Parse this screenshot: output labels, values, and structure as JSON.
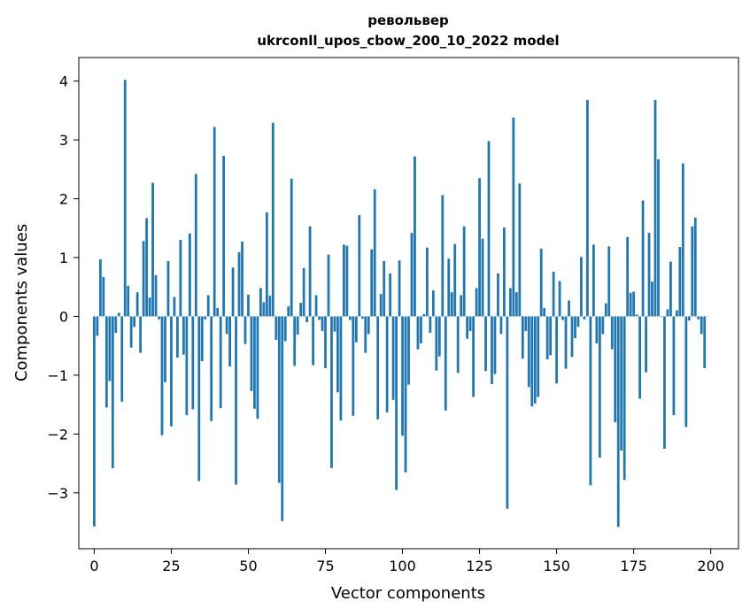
{
  "chart_data": {
    "type": "bar",
    "title_line1": "револьвер",
    "title_line2": "ukrconll_upos_cbow_200_10_2022 model",
    "xlabel": "Vector components",
    "ylabel": "Components values",
    "xlim": [
      -5,
      209
    ],
    "ylim": [
      -3.95,
      4.4
    ],
    "xticks": [
      0,
      25,
      50,
      75,
      100,
      125,
      150,
      175,
      200
    ],
    "yticks": [
      -3,
      -2,
      -1,
      0,
      1,
      2,
      3,
      4
    ],
    "ytick_labels": [
      "−3",
      "−2",
      "−1",
      "0",
      "1",
      "2",
      "3",
      "4"
    ],
    "bar_color": "#1f77b4",
    "grid": false,
    "values": [
      -3.57,
      -0.33,
      0.97,
      0.67,
      -1.55,
      -1.1,
      -2.58,
      -0.28,
      0.06,
      -1.45,
      4.02,
      0.52,
      -0.53,
      -0.18,
      0.41,
      -0.62,
      1.28,
      1.67,
      0.32,
      2.27,
      0.7,
      -0.05,
      -2.02,
      -1.12,
      0.94,
      -1.87,
      0.33,
      -0.7,
      1.3,
      -0.65,
      -1.68,
      1.41,
      -1.58,
      2.42,
      -2.8,
      -0.76,
      -0.05,
      0.36,
      -1.78,
      3.22,
      0.14,
      -1.56,
      2.73,
      -0.3,
      -0.85,
      0.83,
      -2.86,
      1.09,
      1.27,
      -0.47,
      0.37,
      -1.27,
      -1.57,
      -1.74,
      0.48,
      0.24,
      1.77,
      0.35,
      3.29,
      -0.4,
      -2.83,
      -3.48,
      -0.42,
      0.17,
      2.34,
      -0.84,
      -0.31,
      0.23,
      0.82,
      -0.1,
      1.53,
      -0.83,
      0.36,
      -0.06,
      -0.25,
      -0.88,
      1.05,
      -2.58,
      -0.26,
      -1.29,
      -1.77,
      1.22,
      1.2,
      -0.06,
      -1.69,
      -0.44,
      1.72,
      -0.04,
      -0.62,
      -0.3,
      1.14,
      2.16,
      -1.75,
      0.38,
      0.94,
      -1.63,
      0.73,
      -1.42,
      -2.95,
      0.95,
      -2.03,
      -2.65,
      -1.16,
      1.42,
      2.72,
      -0.56,
      -0.46,
      0.04,
      1.17,
      -0.28,
      0.44,
      -0.92,
      -0.68,
      2.06,
      -1.6,
      0.98,
      0.41,
      1.23,
      -0.96,
      0.36,
      1.53,
      -0.38,
      -0.25,
      -1.37,
      0.48,
      2.35,
      1.32,
      -0.93,
      2.98,
      -1.15,
      -0.98,
      0.73,
      -0.3,
      1.51,
      -3.27,
      0.48,
      3.38,
      0.41,
      2.26,
      -0.72,
      -0.25,
      -1.2,
      -1.53,
      -1.48,
      -1.37,
      1.15,
      0.14,
      -0.73,
      -0.66,
      0.76,
      -1.14,
      0.6,
      -0.06,
      -0.89,
      0.27,
      -0.69,
      -0.37,
      -0.18,
      1.01,
      -0.05,
      3.68,
      -2.87,
      1.22,
      -0.46,
      -2.4,
      -0.3,
      0.22,
      1.19,
      -0.56,
      -1.8,
      -3.58,
      -2.28,
      -2.78,
      1.35,
      0.4,
      0.42,
      0.03,
      -1.4,
      1.97,
      -0.95,
      1.42,
      0.59,
      3.68,
      2.67,
      -0.01,
      -2.25,
      0.12,
      0.93,
      -1.68,
      0.1,
      1.18,
      2.6,
      -1.88,
      -0.07,
      1.53,
      1.68,
      -0.05,
      -0.3,
      -0.88,
      0.0
    ]
  }
}
